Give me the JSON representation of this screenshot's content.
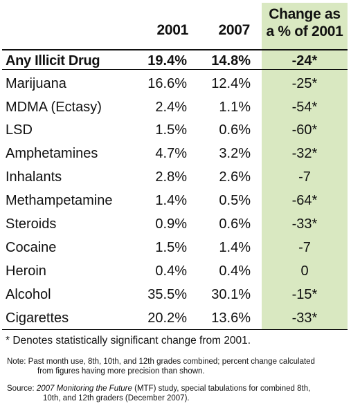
{
  "table": {
    "headers": {
      "col_2001": "2001",
      "col_2007": "2007",
      "change_line1": "Change as",
      "change_line2": "a % of 2001"
    },
    "rows": [
      {
        "label": "Any Illicit Drug",
        "v2001": "19.4%",
        "v2007": "14.8%",
        "change": "-24*"
      },
      {
        "label": "Marijuana",
        "v2001": "16.6%",
        "v2007": "12.4%",
        "change": "-25*"
      },
      {
        "label": "MDMA (Ectasy)",
        "v2001": "2.4%",
        "v2007": "1.1%",
        "change": "-54*"
      },
      {
        "label": "LSD",
        "v2001": "1.5%",
        "v2007": "0.6%",
        "change": "-60*"
      },
      {
        "label": "Amphetamines",
        "v2001": "4.7%",
        "v2007": "3.2%",
        "change": "-32*"
      },
      {
        "label": "Inhalants",
        "v2001": "2.8%",
        "v2007": "2.6%",
        "change": "-7"
      },
      {
        "label": "Methampetamine",
        "v2001": "1.4%",
        "v2007": "0.5%",
        "change": "-64*"
      },
      {
        "label": "Steroids",
        "v2001": "0.9%",
        "v2007": "0.6%",
        "change": "-33*"
      },
      {
        "label": "Cocaine",
        "v2001": "1.5%",
        "v2007": "1.4%",
        "change": "-7"
      },
      {
        "label": "Heroin",
        "v2001": "0.4%",
        "v2007": "0.4%",
        "change": "0"
      },
      {
        "label": "Alcohol",
        "v2001": "35.5%",
        "v2007": "30.1%",
        "change": "-15*"
      },
      {
        "label": "Cigarettes",
        "v2001": "20.2%",
        "v2007": "13.6%",
        "change": "-33*"
      }
    ]
  },
  "footnote": "* Denotes statistically significant change from 2001.",
  "note": {
    "line1": "Note: Past month use, 8th, 10th, and 12th grades combined; percent change calculated",
    "line2": "from figures having more precision than shown."
  },
  "source": {
    "prefix": "Source: ",
    "title": "2007 Monitoring the Future",
    "rest1": " (MTF) study, special tabulations for combined 8th,",
    "line2": "10th, and 12th graders (December 2007)."
  },
  "colors": {
    "highlight_column": "#d9e8c1",
    "text": "#111111"
  }
}
